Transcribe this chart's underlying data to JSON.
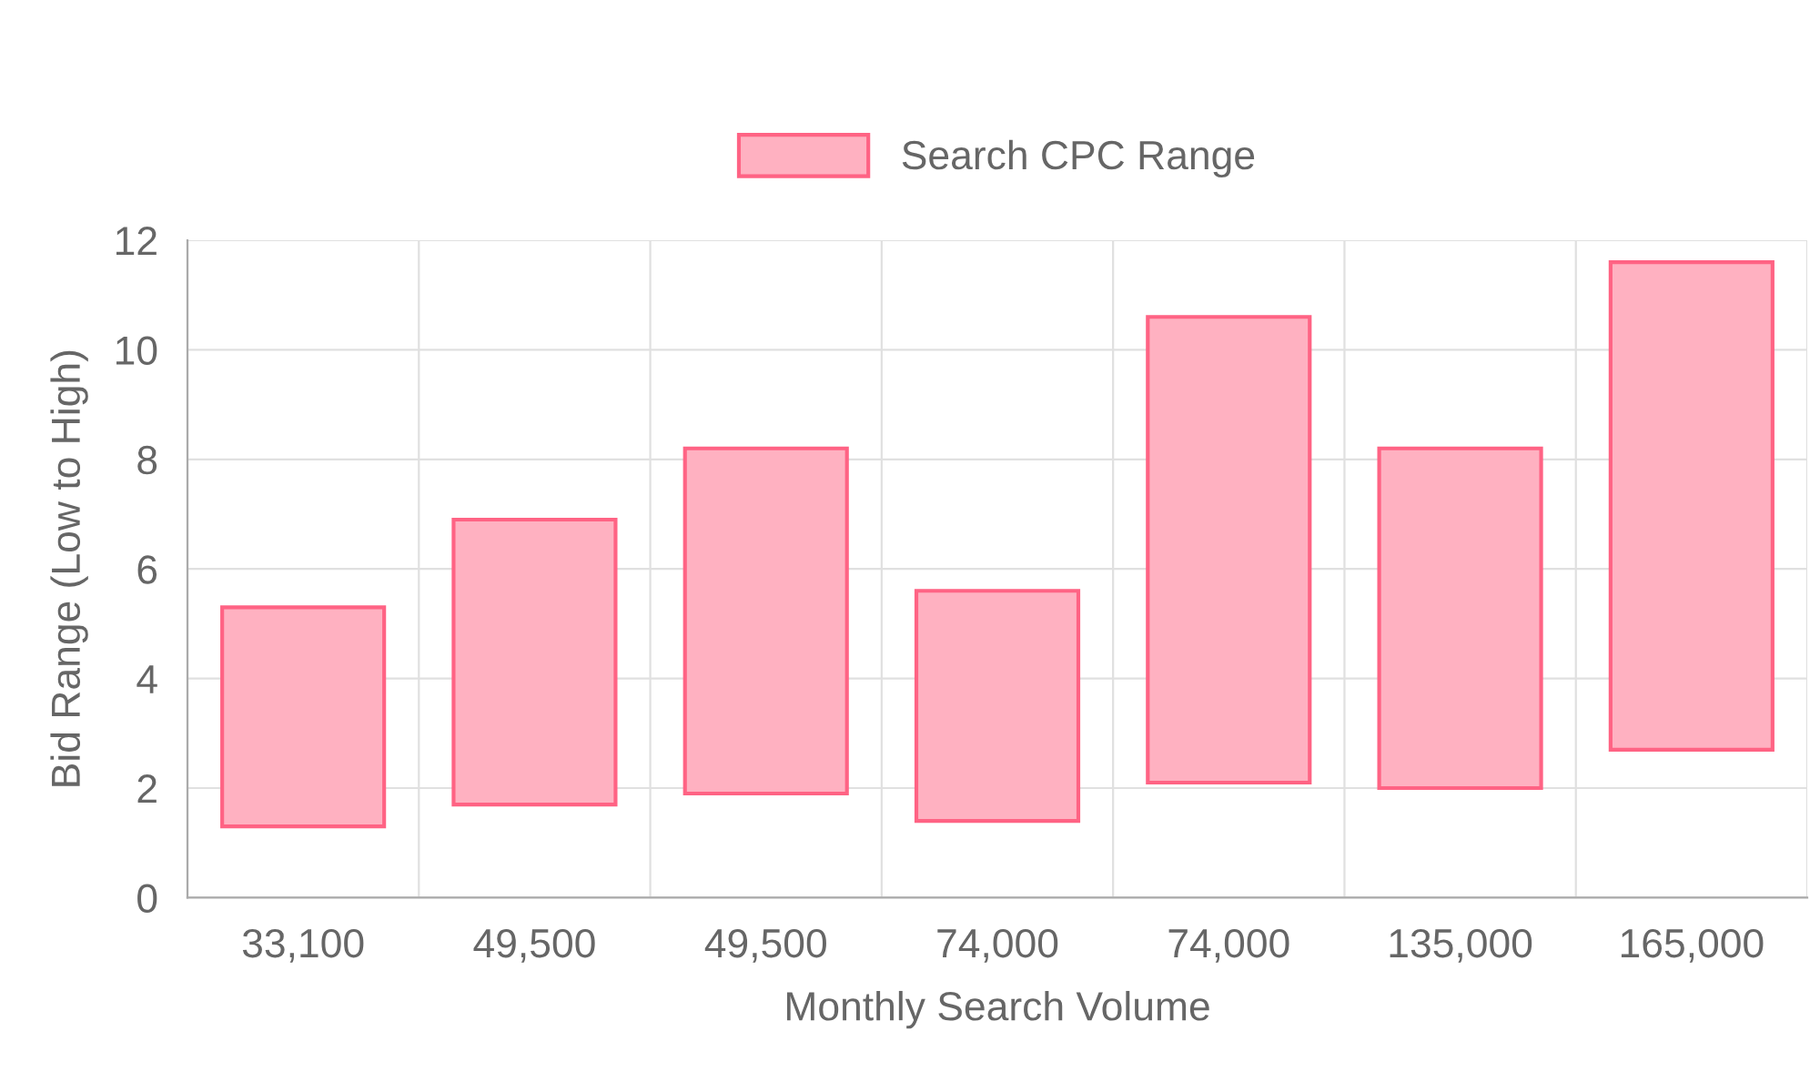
{
  "chart_data": {
    "type": "bar",
    "xlabel": "Monthly Search Volume",
    "ylabel": "Bid Range (Low to High)",
    "categories": [
      "33,100",
      "49,500",
      "49,500",
      "74,000",
      "74,000",
      "135,000",
      "165,000"
    ],
    "series": [
      {
        "name": "Search CPC Range",
        "color": "#ffb1c1",
        "base": [
          1.3,
          1.7,
          1.9,
          1.4,
          2.1,
          2.0,
          2.7
        ],
        "values": [
          4.0,
          5.2,
          6.3,
          4.2,
          8.5,
          6.2,
          8.9
        ]
      }
    ],
    "ylim": [
      0,
      12
    ],
    "yticks": [
      0,
      2,
      4,
      6,
      8,
      10,
      12
    ],
    "grid": true,
    "legend": "top"
  }
}
